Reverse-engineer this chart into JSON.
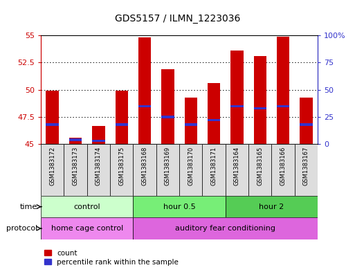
{
  "title": "GDS5157 / ILMN_1223036",
  "samples": [
    "GSM1383172",
    "GSM1383173",
    "GSM1383174",
    "GSM1383175",
    "GSM1383168",
    "GSM1383169",
    "GSM1383170",
    "GSM1383171",
    "GSM1383164",
    "GSM1383165",
    "GSM1383166",
    "GSM1383167"
  ],
  "bar_tops": [
    49.9,
    45.6,
    46.7,
    49.9,
    54.8,
    51.9,
    49.3,
    50.6,
    53.6,
    53.1,
    54.9,
    49.3
  ],
  "bar_base": 45.0,
  "percentile_values": [
    46.8,
    45.4,
    45.3,
    46.8,
    48.5,
    47.5,
    46.8,
    47.2,
    48.5,
    48.3,
    48.5,
    46.8
  ],
  "ylim_left": [
    45.0,
    55.0
  ],
  "yticks_left": [
    45.0,
    47.5,
    50.0,
    52.5,
    55.0
  ],
  "ylim_right": [
    0,
    100
  ],
  "yticks_right": [
    0,
    25,
    50,
    75,
    100
  ],
  "bar_color": "#CC0000",
  "percentile_color": "#3333CC",
  "bar_width": 0.55,
  "groups": [
    {
      "label": "control",
      "start": 0,
      "end": 4,
      "color": "#ccffcc"
    },
    {
      "label": "hour 0.5",
      "start": 4,
      "end": 8,
      "color": "#77ee77"
    },
    {
      "label": "hour 2",
      "start": 8,
      "end": 12,
      "color": "#55cc55"
    }
  ],
  "protocols": [
    {
      "label": "home cage control",
      "start": 0,
      "end": 4,
      "color": "#ee88ee"
    },
    {
      "label": "auditory fear conditioning",
      "start": 4,
      "end": 12,
      "color": "#dd66dd"
    }
  ],
  "time_label": "time",
  "protocol_label": "protocol",
  "legend_count_label": "count",
  "legend_percentile_label": "percentile rank within the sample",
  "background_color": "#ffffff",
  "plot_bg": "#ffffff"
}
